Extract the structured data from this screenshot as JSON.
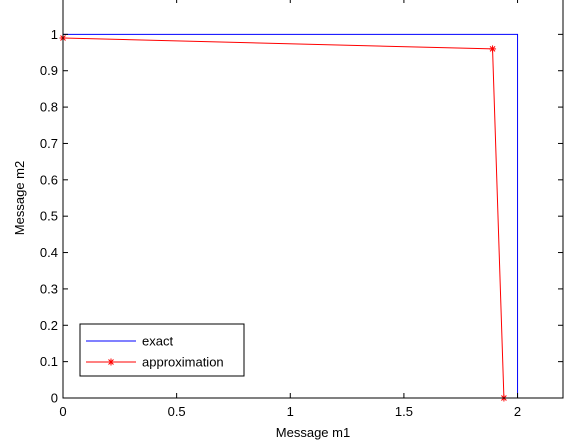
{
  "chart_data": {
    "type": "line",
    "xlabel": "Message m1",
    "ylabel": "Message m2",
    "xlim": [
      0,
      2.2
    ],
    "ylim": [
      0,
      1.1
    ],
    "x_ticks": [
      0,
      0.5,
      1,
      1.5,
      2
    ],
    "x_tick_labels": [
      "0",
      "0.5",
      "1",
      "1.5",
      "2"
    ],
    "y_ticks": [
      0,
      0.1,
      0.2,
      0.3,
      0.4,
      0.5,
      0.6,
      0.7,
      0.8,
      0.9,
      1
    ],
    "y_tick_labels": [
      "0",
      "0.1",
      "0.2",
      "0.3",
      "0.4",
      "0.5",
      "0.6",
      "0.7",
      "0.8",
      "0.9",
      "1"
    ],
    "grid": false,
    "legend_position": "bottom-left",
    "series": [
      {
        "name": "exact",
        "color": "#0000ff",
        "marker": "none",
        "x": [
          0,
          2,
          2
        ],
        "y": [
          1,
          1,
          0
        ]
      },
      {
        "name": "approximation",
        "color": "#ff0000",
        "marker": "asterisk",
        "x": [
          0,
          1.89,
          1.94
        ],
        "y": [
          0.99,
          0.96,
          0
        ]
      }
    ]
  }
}
